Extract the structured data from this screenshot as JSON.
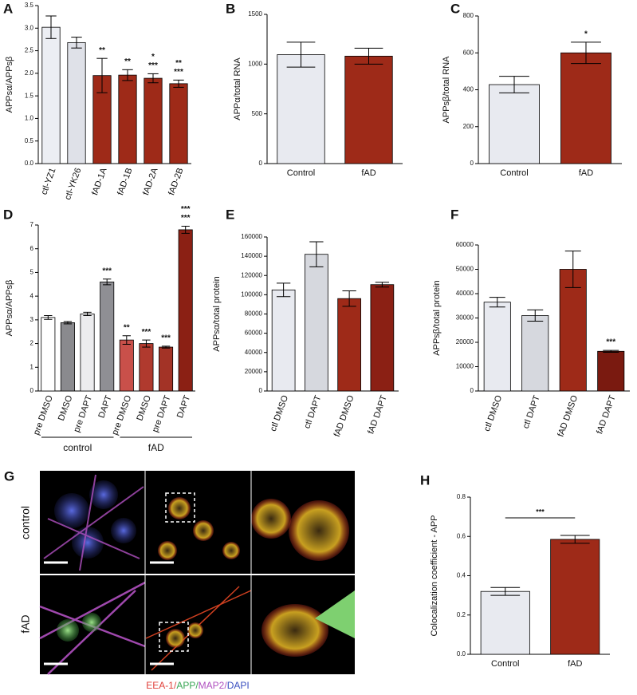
{
  "chart_data": [
    {
      "type": "bar",
      "panel": "A",
      "ylabel": "APPsα/APPsβ",
      "categories": [
        "ctl-YZ1",
        "ctl-YK26",
        "fAD-1A",
        "fAD-1B",
        "fAD-2A",
        "fAD-2B"
      ],
      "values": [
        3.02,
        2.68,
        1.95,
        1.96,
        1.89,
        1.77
      ],
      "errors": [
        0.25,
        0.12,
        0.38,
        0.12,
        0.1,
        0.08
      ],
      "colors": [
        "#eceef3",
        "#dfe1e8",
        "#9e2a18",
        "#9e2a18",
        "#9e2a18",
        "#9e2a18"
      ],
      "ylim": [
        0,
        3.5
      ],
      "yticks": [
        {
          "value": 0,
          "label": "0.0"
        },
        0.5,
        {
          "value": 1,
          "label": "1.0"
        },
        1.5,
        {
          "value": 2,
          "label": "2.0"
        },
        2.5,
        {
          "value": 3,
          "label": "3.0"
        },
        3.5
      ],
      "significance": [
        null,
        null,
        [
          {
            "text": "**",
            "color": "#3aa655"
          }
        ],
        [
          {
            "text": "**",
            "color": "#3aa655"
          }
        ],
        [
          {
            "text": "***",
            "color": "#3aa655"
          },
          {
            "text": "*",
            "color": "#d0402a"
          }
        ],
        [
          {
            "text": "***",
            "color": "#3aa655"
          },
          {
            "text": "**",
            "color": "#d0402a"
          }
        ]
      ]
    },
    {
      "type": "bar",
      "panel": "B",
      "ylabel": "APPα/total RNA",
      "categories": [
        "Control",
        "fAD"
      ],
      "values": [
        1095,
        1080
      ],
      "errors": [
        125,
        80
      ],
      "colors": [
        "#e8eaf0",
        "#9e2a18"
      ],
      "ylim": [
        0,
        1500
      ],
      "yticks": [
        0,
        500,
        1000,
        1500
      ]
    },
    {
      "type": "bar",
      "panel": "C",
      "ylabel": "APPsβ/total RNA",
      "categories": [
        "Control",
        "fAD"
      ],
      "values": [
        428,
        600
      ],
      "errors": [
        45,
        58
      ],
      "colors": [
        "#e8eaf0",
        "#9e2a18"
      ],
      "ylim": [
        0,
        800
      ],
      "yticks": [
        0,
        200,
        400,
        600,
        800
      ],
      "significance": [
        null,
        [
          {
            "text": "*",
            "color": "#000000"
          }
        ]
      ]
    },
    {
      "type": "bar",
      "panel": "D",
      "ylabel": "APPsα/APPsβ",
      "categories": [
        "pre DMSO",
        "DMSO",
        "pre DAPT",
        "DAPT",
        "pre DMSO",
        "DMSO",
        "pre DAPT",
        "DAPT"
      ],
      "values": [
        3.1,
        2.88,
        3.25,
        4.6,
        2.15,
        2.0,
        1.85,
        6.8
      ],
      "errors": [
        0.08,
        0.05,
        0.07,
        0.12,
        0.18,
        0.15,
        0.04,
        0.15
      ],
      "colors": [
        "#ffffff",
        "#8a8a8e",
        "#ececee",
        "#8f8f94",
        "#c9504a",
        "#b03a2e",
        "#a33326",
        "#8b2014"
      ],
      "ylim": [
        0,
        7
      ],
      "yticks": [
        0,
        1,
        2,
        3,
        4,
        5,
        6,
        7
      ],
      "groups": [
        {
          "label": "control",
          "size": 4
        },
        {
          "label": "fAD",
          "size": 4
        }
      ],
      "significance": [
        null,
        null,
        null,
        [
          {
            "text": "***",
            "color": "#3aa655"
          }
        ],
        [
          {
            "text": "**",
            "color": "#3aa655"
          }
        ],
        [
          {
            "text": "***",
            "color": "#3aa655"
          }
        ],
        [
          {
            "text": "***",
            "color": "#3aa655"
          }
        ],
        [
          {
            "text": "***",
            "color": "#8a3d9a"
          },
          {
            "text": "***",
            "color": "#3aa655"
          }
        ]
      ]
    },
    {
      "type": "bar",
      "panel": "E",
      "ylabel": "APPsα/total protein",
      "categories": [
        "ctl DMSO",
        "ctl DAPT",
        "fAD DMSO",
        "fAD DAPT"
      ],
      "values": [
        105000,
        142000,
        96000,
        110500
      ],
      "errors": [
        7000,
        13000,
        8000,
        2500
      ],
      "colors": [
        "#e8eaf0",
        "#d6d8de",
        "#9e2a18",
        "#8b2014"
      ],
      "ylim": [
        0,
        160000
      ],
      "yticks": [
        0,
        20000,
        40000,
        60000,
        80000,
        100000,
        120000,
        140000,
        160000
      ]
    },
    {
      "type": "bar",
      "panel": "F",
      "ylabel": "APPsβ/total protein",
      "categories": [
        "ctl DMSO",
        "ctl DAPT",
        "fAD DMSO",
        "fAD DAPT"
      ],
      "values": [
        36500,
        31000,
        50000,
        16300
      ],
      "errors": [
        2000,
        2300,
        7500,
        400
      ],
      "colors": [
        "#e8eaf0",
        "#d6d8de",
        "#9e2a18",
        "#7a1a10"
      ],
      "ylim": [
        0,
        60000
      ],
      "yticks": [
        0,
        10000,
        20000,
        30000,
        40000,
        50000,
        60000
      ],
      "significance": [
        null,
        null,
        null,
        [
          {
            "text": "***",
            "color": "#8a3d9a"
          }
        ]
      ]
    },
    {
      "type": "bar",
      "panel": "H",
      "ylabel": "Colocalization coefficient - APP",
      "categories": [
        "Control",
        "fAD"
      ],
      "values": [
        0.32,
        0.585
      ],
      "errors": [
        0.02,
        0.02
      ],
      "colors": [
        "#e8eaf0",
        "#9e2a18"
      ],
      "ylim": [
        0,
        0.8
      ],
      "yticks": [
        {
          "value": 0,
          "label": "0.0"
        },
        0.2,
        0.4,
        0.6,
        0.8
      ],
      "comparison": {
        "text": "***"
      }
    }
  ],
  "panel_g": {
    "panel": "G",
    "rows": [
      "control",
      "fAD"
    ],
    "legend": [
      {
        "text": "EEA-1/",
        "color": "#e0403a"
      },
      {
        "text": "APP/",
        "color": "#3aa655"
      },
      {
        "text": "MAP2/",
        "color": "#b050c0"
      },
      {
        "text": "DAPI",
        "color": "#3a4fc0"
      }
    ]
  }
}
